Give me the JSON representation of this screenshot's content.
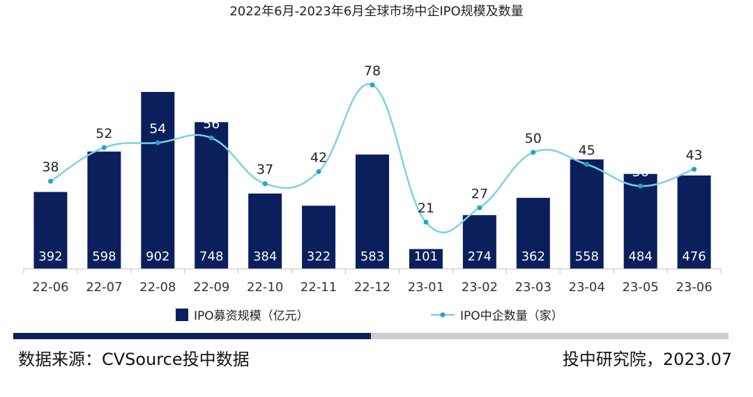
{
  "chart_data": {
    "type": "bar",
    "title": "2022年6月-2023年6月全球市场中企IPO规模及数量",
    "categories": [
      "22-06",
      "22-07",
      "22-08",
      "22-09",
      "22-10",
      "22-11",
      "22-12",
      "23-01",
      "23-02",
      "23-03",
      "23-04",
      "23-05",
      "23-06"
    ],
    "series": [
      {
        "name": "IPO募资规模（亿元）",
        "type": "bar",
        "color": "#0b1f5c",
        "values": [
          392,
          598,
          902,
          748,
          384,
          322,
          583,
          101,
          274,
          362,
          558,
          484,
          476
        ]
      },
      {
        "name": "IPO中企数量（家）",
        "type": "line",
        "smooth": true,
        "color": "#7fd0e6",
        "marker_color": "#1aa6d0",
        "values": [
          38,
          52,
          54,
          56,
          37,
          42,
          78,
          21,
          27,
          50,
          45,
          36,
          43
        ]
      }
    ],
    "bar_ylim": [
      0,
      1000
    ],
    "line_ylim": [
      0,
      100
    ],
    "xlabel": "",
    "ylabel": "",
    "grid": false,
    "legend_position": "bottom"
  },
  "footer": {
    "source": "数据来源：CVSource投中数据",
    "credit": "投中研究院，2023.07",
    "progress_fraction": 0.5,
    "progress_color": "#0b1f5c",
    "track_color": "#cccccc"
  }
}
